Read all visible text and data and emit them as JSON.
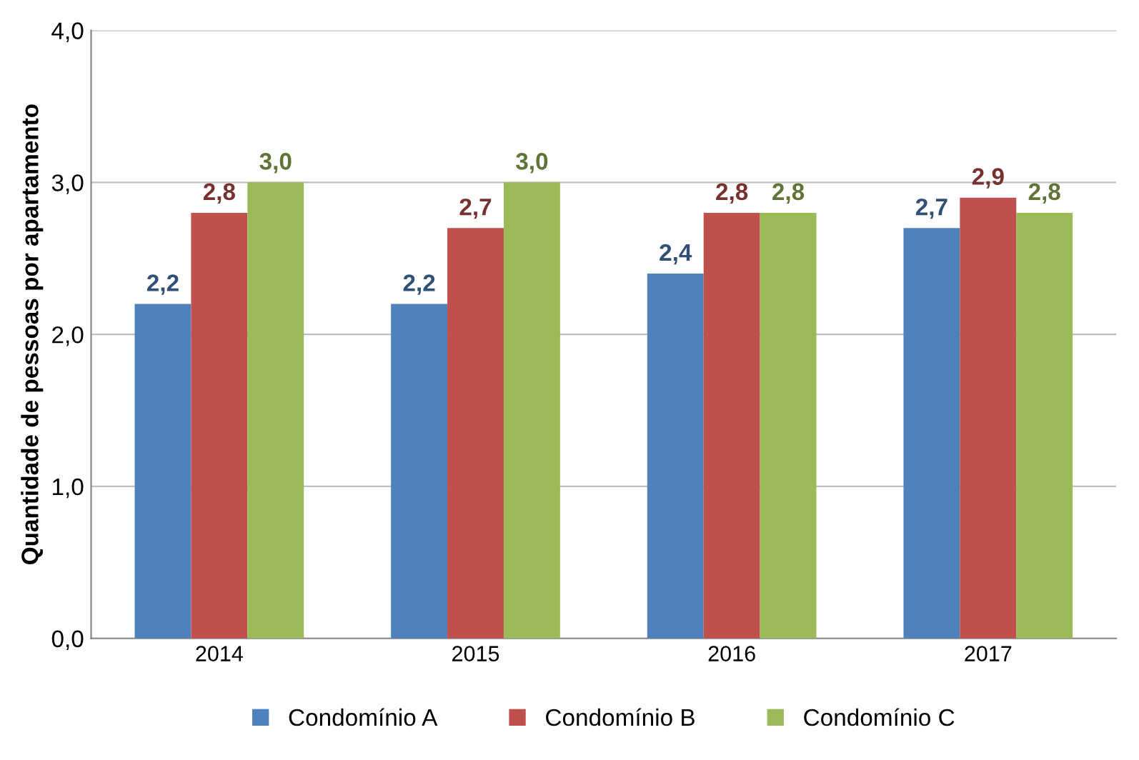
{
  "chart_data": {
    "type": "bar",
    "ylabel": "Quantidade de pessoas por apartamento",
    "categories": [
      "2014",
      "2015",
      "2016",
      "2017"
    ],
    "series": [
      {
        "name": "Condomínio A",
        "color": "#4f81bd",
        "values": [
          2.2,
          2.2,
          2.4,
          2.7
        ],
        "value_labels": [
          "2,2",
          "2,2",
          "2,4",
          "2,7"
        ]
      },
      {
        "name": "Condomínio B",
        "color": "#c0504d",
        "values": [
          2.8,
          2.7,
          2.8,
          2.9
        ],
        "value_labels": [
          "2,8",
          "2,7",
          "2,8",
          "2,9"
        ]
      },
      {
        "name": "Condomínio C",
        "color": "#9bbb59",
        "values": [
          3.0,
          3.0,
          2.8,
          2.8
        ],
        "value_labels": [
          "3,0",
          "3,0",
          "2,8",
          "2,8"
        ]
      }
    ],
    "ylim": [
      0,
      4
    ],
    "yticks": [
      {
        "value": 0,
        "label": "0,0"
      },
      {
        "value": 1,
        "label": "1,0"
      },
      {
        "value": 2,
        "label": "2,0"
      },
      {
        "value": 3,
        "label": "3,0"
      },
      {
        "value": 4,
        "label": "4,0"
      }
    ],
    "grid": "y",
    "legend": "bottom"
  }
}
